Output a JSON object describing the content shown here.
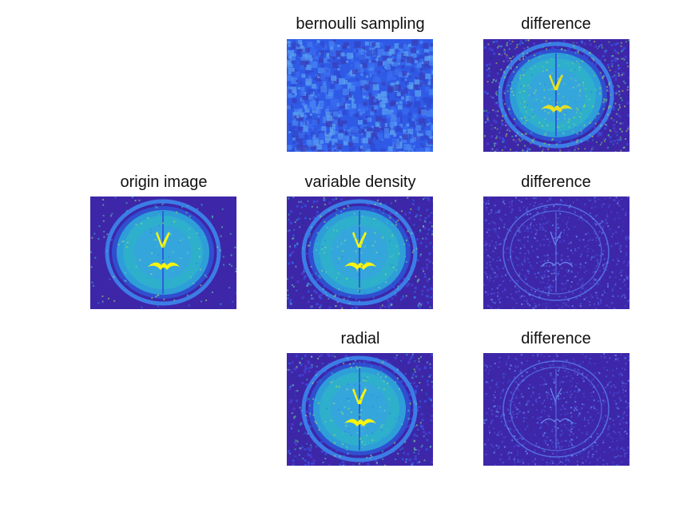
{
  "figure": {
    "panels": [
      {
        "id": "origin",
        "title": "origin image",
        "kind": "brain",
        "quality": "clean"
      },
      {
        "id": "bernoulli",
        "title": "bernoulli sampling",
        "kind": "noise",
        "quality": "blocky"
      },
      {
        "id": "bernoulli_diff",
        "title": "difference",
        "kind": "brain",
        "quality": "strong"
      },
      {
        "id": "variable",
        "title": "variable density",
        "kind": "brain",
        "quality": "noisy"
      },
      {
        "id": "variable_diff",
        "title": "difference",
        "kind": "edges",
        "quality": "faint"
      },
      {
        "id": "radial",
        "title": "radial",
        "kind": "brain",
        "quality": "noisy"
      },
      {
        "id": "radial_diff",
        "title": "difference",
        "kind": "edges",
        "quality": "faint"
      }
    ],
    "colormap": {
      "low": "#3e26a8",
      "mid": "#2c8ef0",
      "high": "#f9f40e"
    }
  }
}
